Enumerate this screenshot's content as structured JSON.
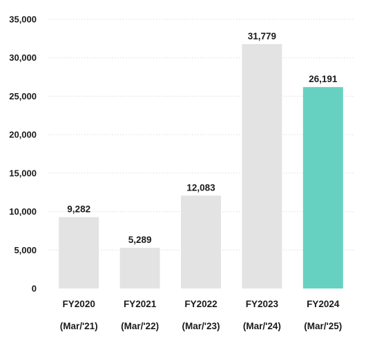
{
  "chart_data": {
    "type": "bar",
    "categories": [
      "FY2020",
      "FY2021",
      "FY2022",
      "FY2023",
      "FY2024"
    ],
    "sublabels": [
      "(Mar/'21)",
      "(Mar/'22)",
      "(Mar/'23)",
      "(Mar/'24)",
      "(Mar/'25)"
    ],
    "values": [
      9282,
      5289,
      12083,
      31779,
      26191
    ],
    "data_labels": [
      "9,282",
      "5,289",
      "12,083",
      "31,779",
      "26,191"
    ],
    "yticks": [
      0,
      5000,
      10000,
      15000,
      20000,
      25000,
      30000,
      35000
    ],
    "ytick_labels": [
      "0",
      "5,000",
      "10,000",
      "15,000",
      "20,000",
      "25,000",
      "30,000",
      "35,000"
    ],
    "ylim": [
      0,
      35000
    ],
    "grid": true,
    "legend": "none",
    "colors": {
      "default": "#e3e3e3",
      "highlight": "#66d1c1",
      "highlight_index": 4
    },
    "title": "",
    "xlabel": "",
    "ylabel": ""
  }
}
